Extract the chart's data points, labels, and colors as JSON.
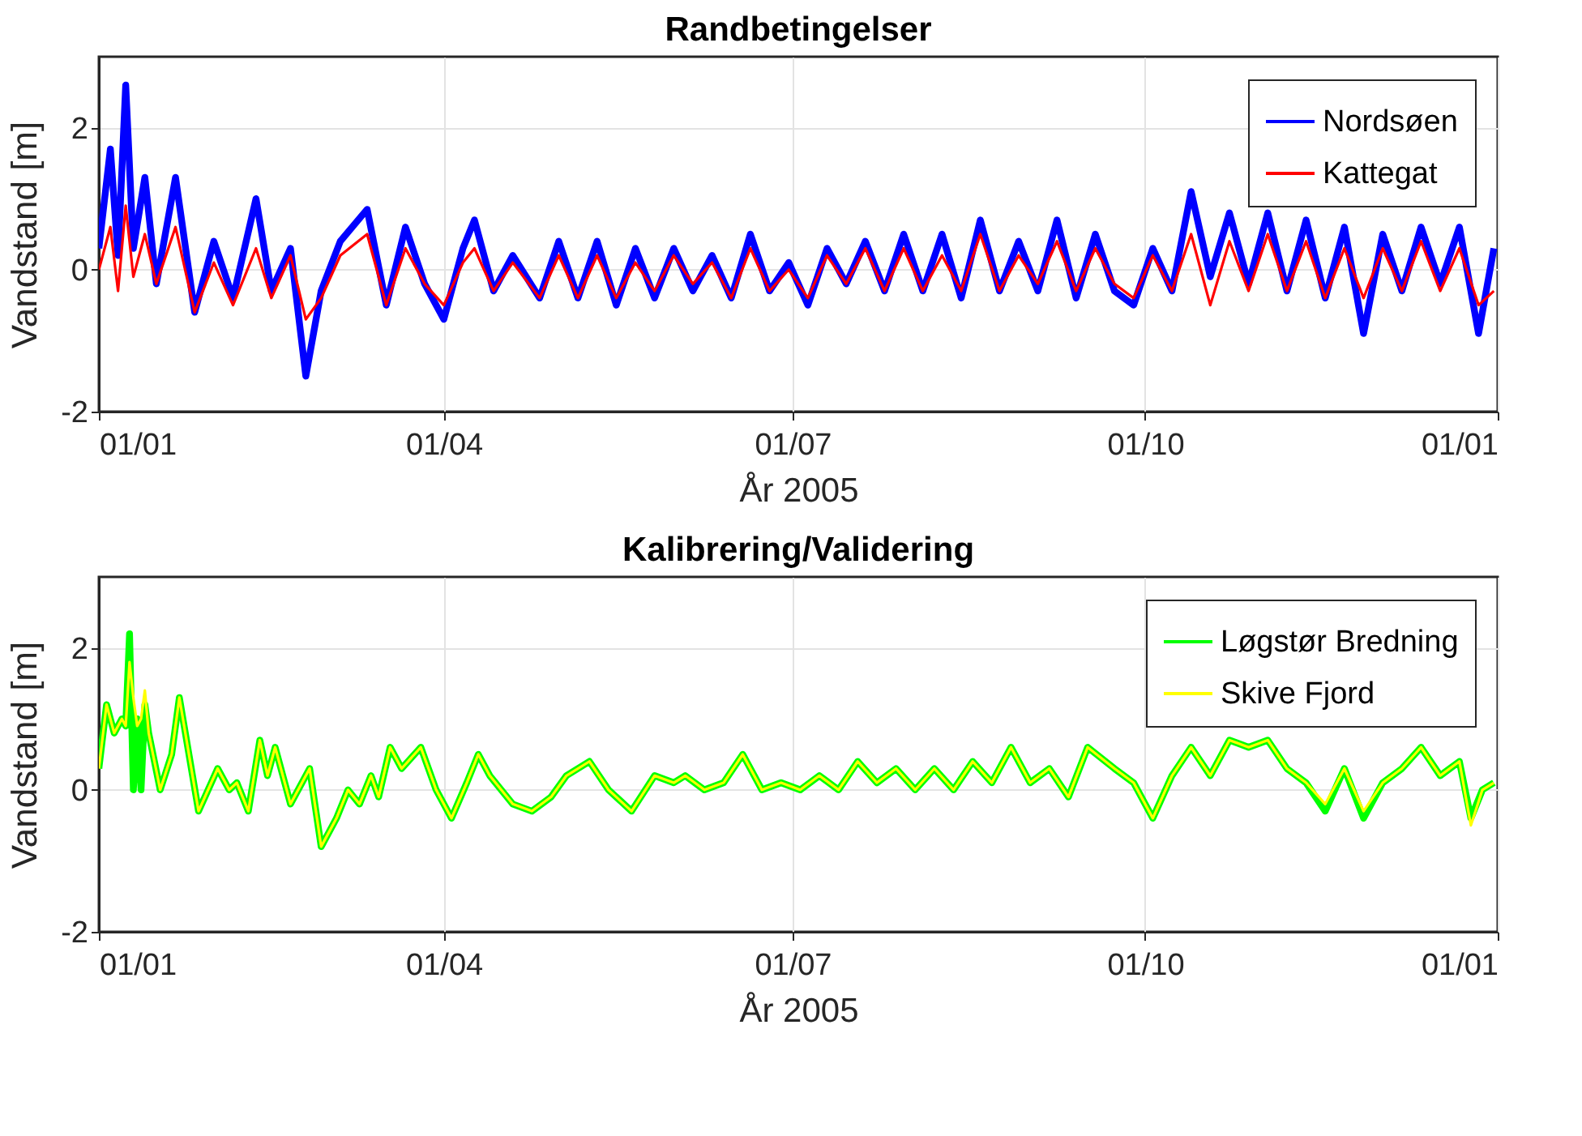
{
  "chart_data": [
    {
      "type": "line",
      "title": "Randbetingelser",
      "xlabel": "År 2005",
      "ylabel": "Vandstand [m]",
      "x": [
        "2005-01-01",
        "2005-01-04",
        "2005-01-06",
        "2005-01-08",
        "2005-01-10",
        "2005-01-13",
        "2005-01-16",
        "2005-01-21",
        "2005-01-26",
        "2005-01-31",
        "2005-02-05",
        "2005-02-11",
        "2005-02-15",
        "2005-02-20",
        "2005-02-24",
        "2005-02-28",
        "2005-03-05",
        "2005-03-12",
        "2005-03-17",
        "2005-03-22",
        "2005-03-27",
        "2005-04-01",
        "2005-04-06",
        "2005-04-09",
        "2005-04-14",
        "2005-04-19",
        "2005-04-26",
        "2005-05-01",
        "2005-05-06",
        "2005-05-11",
        "2005-05-16",
        "2005-05-21",
        "2005-05-26",
        "2005-05-31",
        "2005-06-05",
        "2005-06-10",
        "2005-06-15",
        "2005-06-20",
        "2005-06-25",
        "2005-06-30",
        "2005-07-05",
        "2005-07-10",
        "2005-07-15",
        "2005-07-20",
        "2005-07-25",
        "2005-07-30",
        "2005-08-04",
        "2005-08-09",
        "2005-08-14",
        "2005-08-19",
        "2005-08-24",
        "2005-08-29",
        "2005-09-03",
        "2005-09-08",
        "2005-09-13",
        "2005-09-18",
        "2005-09-23",
        "2005-09-28",
        "2005-10-03",
        "2005-10-08",
        "2005-10-13",
        "2005-10-18",
        "2005-10-23",
        "2005-10-28",
        "2005-11-02",
        "2005-11-07",
        "2005-11-12",
        "2005-11-17",
        "2005-11-22",
        "2005-11-27",
        "2005-12-02",
        "2005-12-07",
        "2005-12-12",
        "2005-12-17",
        "2005-12-22",
        "2005-12-27",
        "2005-12-31"
      ],
      "series": [
        {
          "name": "Nordsøen",
          "color": "#0000ff",
          "values": [
            0.3,
            1.7,
            0.2,
            2.6,
            0.3,
            1.3,
            -0.2,
            1.3,
            -0.6,
            0.4,
            -0.4,
            1.0,
            -0.3,
            0.3,
            -1.5,
            -0.3,
            0.4,
            0.85,
            -0.5,
            0.6,
            -0.2,
            -0.7,
            0.3,
            0.7,
            -0.3,
            0.2,
            -0.4,
            0.4,
            -0.4,
            0.4,
            -0.5,
            0.3,
            -0.4,
            0.3,
            -0.3,
            0.2,
            -0.4,
            0.5,
            -0.3,
            0.1,
            -0.5,
            0.3,
            -0.2,
            0.4,
            -0.3,
            0.5,
            -0.3,
            0.5,
            -0.4,
            0.7,
            -0.3,
            0.4,
            -0.3,
            0.7,
            -0.4,
            0.5,
            -0.3,
            -0.5,
            0.3,
            -0.3,
            1.1,
            -0.1,
            0.8,
            -0.2,
            0.8,
            -0.3,
            0.7,
            -0.4,
            0.6,
            -0.9,
            0.5,
            -0.3,
            0.6,
            -0.2,
            0.6,
            -0.9,
            0.3
          ]
        },
        {
          "name": "Kattegat",
          "color": "#ff0000",
          "values": [
            0.0,
            0.6,
            -0.3,
            0.9,
            -0.1,
            0.5,
            -0.2,
            0.6,
            -0.6,
            0.1,
            -0.5,
            0.3,
            -0.4,
            0.2,
            -0.7,
            -0.4,
            0.2,
            0.5,
            -0.5,
            0.3,
            -0.2,
            -0.5,
            0.1,
            0.3,
            -0.3,
            0.1,
            -0.4,
            0.2,
            -0.4,
            0.2,
            -0.4,
            0.1,
            -0.3,
            0.2,
            -0.2,
            0.1,
            -0.4,
            0.3,
            -0.3,
            0.0,
            -0.4,
            0.2,
            -0.2,
            0.3,
            -0.3,
            0.3,
            -0.3,
            0.2,
            -0.3,
            0.5,
            -0.3,
            0.2,
            -0.2,
            0.4,
            -0.3,
            0.3,
            -0.2,
            -0.4,
            0.2,
            -0.3,
            0.5,
            -0.5,
            0.4,
            -0.3,
            0.5,
            -0.3,
            0.4,
            -0.4,
            0.3,
            -0.4,
            0.3,
            -0.3,
            0.4,
            -0.3,
            0.3,
            -0.5,
            -0.3
          ]
        }
      ],
      "xlim": [
        "2005-01-01",
        "2006-01-01"
      ],
      "xticks": [
        {
          "value": "2005-01-01",
          "label": "01/01"
        },
        {
          "value": "2005-04-01",
          "label": "01/04"
        },
        {
          "value": "2005-07-01",
          "label": "01/07"
        },
        {
          "value": "2005-10-01",
          "label": "01/10"
        },
        {
          "value": "2006-01-01",
          "label": "01/01"
        }
      ],
      "ylim": [
        -2,
        3
      ],
      "yticks": [
        -2,
        0,
        2
      ],
      "grid": true,
      "legend": "top right"
    },
    {
      "type": "line",
      "title": "Kalibrering/Validering",
      "xlabel": "År 2005",
      "ylabel": "Vandstand [m]",
      "x": [
        "2005-01-01",
        "2005-01-03",
        "2005-01-05",
        "2005-01-07",
        "2005-01-08",
        "2005-01-09",
        "2005-01-10",
        "2005-01-11",
        "2005-01-12",
        "2005-01-13",
        "2005-01-14",
        "2005-01-17",
        "2005-01-20",
        "2005-01-22",
        "2005-01-27",
        "2005-02-01",
        "2005-02-04",
        "2005-02-06",
        "2005-02-09",
        "2005-02-12",
        "2005-02-14",
        "2005-02-16",
        "2005-02-20",
        "2005-02-25",
        "2005-02-28",
        "2005-03-04",
        "2005-03-07",
        "2005-03-10",
        "2005-03-13",
        "2005-03-15",
        "2005-03-18",
        "2005-03-21",
        "2005-03-26",
        "2005-03-30",
        "2005-04-03",
        "2005-04-07",
        "2005-04-10",
        "2005-04-13",
        "2005-04-19",
        "2005-04-24",
        "2005-04-29",
        "2005-05-03",
        "2005-05-09",
        "2005-05-14",
        "2005-05-20",
        "2005-05-26",
        "2005-05-31",
        "2005-06-03",
        "2005-06-08",
        "2005-06-13",
        "2005-06-18",
        "2005-06-23",
        "2005-06-28",
        "2005-07-03",
        "2005-07-08",
        "2005-07-13",
        "2005-07-18",
        "2005-07-23",
        "2005-07-28",
        "2005-08-02",
        "2005-08-07",
        "2005-08-12",
        "2005-08-17",
        "2005-08-22",
        "2005-08-27",
        "2005-09-01",
        "2005-09-06",
        "2005-09-11",
        "2005-09-16",
        "2005-09-23",
        "2005-09-28",
        "2005-10-03",
        "2005-10-08",
        "2005-10-13",
        "2005-10-18",
        "2005-10-23",
        "2005-10-28",
        "2005-11-02",
        "2005-11-07",
        "2005-11-12",
        "2005-11-17",
        "2005-11-22",
        "2005-11-27",
        "2005-12-02",
        "2005-12-07",
        "2005-12-12",
        "2005-12-17",
        "2005-12-22",
        "2005-12-25",
        "2005-12-28",
        "2005-12-31"
      ],
      "series": [
        {
          "name": "Løgstør Bredning",
          "color": "#00ff00",
          "values": [
            0.3,
            1.2,
            0.8,
            1.0,
            0.9,
            2.2,
            0.0,
            1.0,
            0.0,
            1.2,
            0.8,
            0.0,
            0.5,
            1.3,
            -0.3,
            0.3,
            0.0,
            0.1,
            -0.3,
            0.7,
            0.2,
            0.6,
            -0.2,
            0.3,
            -0.8,
            -0.4,
            0.0,
            -0.2,
            0.2,
            -0.1,
            0.6,
            0.3,
            0.6,
            0.0,
            -0.4,
            0.1,
            0.5,
            0.2,
            -0.2,
            -0.3,
            -0.1,
            0.2,
            0.4,
            0.0,
            -0.3,
            0.2,
            0.1,
            0.2,
            0.0,
            0.1,
            0.5,
            0.0,
            0.1,
            0.0,
            0.2,
            0.0,
            0.4,
            0.1,
            0.3,
            0.0,
            0.3,
            0.0,
            0.4,
            0.1,
            0.6,
            0.1,
            0.3,
            -0.1,
            0.6,
            0.3,
            0.1,
            -0.4,
            0.2,
            0.6,
            0.2,
            0.7,
            0.6,
            0.7,
            0.3,
            0.1,
            -0.3,
            0.3,
            -0.4,
            0.1,
            0.3,
            0.6,
            0.2,
            0.4,
            -0.4,
            0.0,
            0.1
          ]
        },
        {
          "name": "Skive Fjord",
          "color": "#ffff00",
          "values": [
            0.3,
            1.2,
            0.8,
            1.0,
            0.9,
            1.8,
            1.3,
            0.9,
            1.0,
            1.4,
            0.8,
            0.0,
            0.5,
            1.3,
            -0.3,
            0.3,
            0.0,
            0.1,
            -0.3,
            0.7,
            0.2,
            0.6,
            -0.2,
            0.3,
            -0.8,
            -0.4,
            0.0,
            -0.2,
            0.2,
            -0.1,
            0.6,
            0.3,
            0.6,
            0.0,
            -0.4,
            0.1,
            0.5,
            0.2,
            -0.2,
            -0.3,
            -0.1,
            0.2,
            0.4,
            0.0,
            -0.3,
            0.2,
            0.1,
            0.2,
            0.0,
            0.1,
            0.5,
            0.0,
            0.1,
            0.0,
            0.2,
            0.0,
            0.4,
            0.1,
            0.3,
            0.0,
            0.3,
            0.0,
            0.4,
            0.1,
            0.6,
            0.1,
            0.3,
            -0.1,
            0.6,
            0.3,
            0.1,
            -0.4,
            0.2,
            0.6,
            0.2,
            0.7,
            0.6,
            0.7,
            0.3,
            0.1,
            -0.2,
            0.3,
            -0.3,
            0.1,
            0.3,
            0.6,
            0.2,
            0.4,
            -0.5,
            0.0,
            0.1
          ]
        }
      ],
      "xlim": [
        "2005-01-01",
        "2006-01-01"
      ],
      "xticks": [
        {
          "value": "2005-01-01",
          "label": "01/01"
        },
        {
          "value": "2005-04-01",
          "label": "01/04"
        },
        {
          "value": "2005-07-01",
          "label": "01/07"
        },
        {
          "value": "2005-10-01",
          "label": "01/10"
        },
        {
          "value": "2006-01-01",
          "label": "01/01"
        }
      ],
      "ylim": [
        -2,
        3
      ],
      "yticks": [
        -2,
        0,
        2
      ],
      "grid": true,
      "legend": "top right"
    }
  ]
}
